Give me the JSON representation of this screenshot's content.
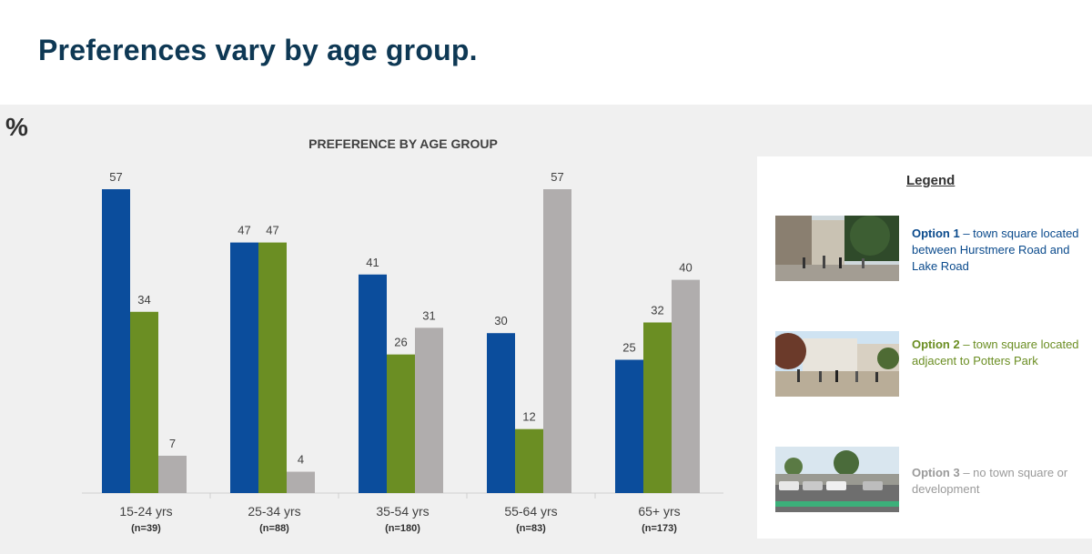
{
  "page": {
    "title": "Preferences vary by age group."
  },
  "chart_data": {
    "type": "bar",
    "title": "PREFERENCE BY AGE GROUP",
    "unit_label": "%",
    "categories": [
      "15-24 yrs",
      "25-34 yrs",
      "35-54 yrs",
      "55-64 yrs",
      "65+ yrs"
    ],
    "sample_sizes": [
      "(n=39)",
      "(n=88)",
      "(n=180)",
      "(n=83)",
      "(n=173)"
    ],
    "series": [
      {
        "name": "Option 1",
        "color": "#0b4d9c",
        "values": [
          57,
          47,
          41,
          30,
          25
        ]
      },
      {
        "name": "Option 2",
        "color": "#6b8e23",
        "values": [
          34,
          47,
          26,
          12,
          32
        ]
      },
      {
        "name": "Option 3",
        "color": "#b0adad",
        "values": [
          7,
          4,
          31,
          57,
          40
        ]
      }
    ],
    "ylim": [
      0,
      60
    ],
    "grid": false,
    "legend_position": "right"
  },
  "legend": {
    "title": "Legend",
    "items": [
      {
        "option": "Option 1",
        "desc": " – town square located between Hurstmere Road and Lake Road",
        "image": "street-photo"
      },
      {
        "option": "Option 2",
        "desc": " – town square located adjacent to Potters Park",
        "image": "plaza-photo"
      },
      {
        "option": "Option 3",
        "desc": " – no town square or development",
        "image": "carpark-photo"
      }
    ]
  }
}
